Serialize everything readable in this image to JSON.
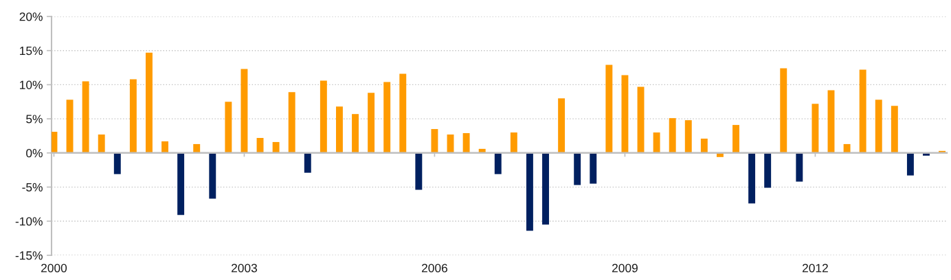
{
  "chart_data": {
    "type": "bar",
    "categories": [
      "2000",
      null,
      null,
      null,
      null,
      null,
      null,
      null,
      null,
      null,
      null,
      null,
      "2003",
      null,
      null,
      null,
      null,
      null,
      null,
      null,
      null,
      null,
      null,
      null,
      "2006",
      null,
      null,
      null,
      null,
      null,
      null,
      null,
      null,
      null,
      null,
      null,
      "2009",
      null,
      null,
      null,
      null,
      null,
      null,
      null,
      null,
      null,
      null,
      null,
      "2012",
      null,
      null,
      null,
      null,
      null,
      null,
      null,
      null
    ],
    "values": [
      3.1,
      7.8,
      10.5,
      2.7,
      -3.1,
      10.8,
      14.7,
      1.7,
      -9.1,
      1.3,
      -6.7,
      7.5,
      12.3,
      2.2,
      1.6,
      8.9,
      -2.9,
      10.6,
      6.8,
      5.7,
      8.8,
      10.4,
      11.6,
      -5.4,
      3.5,
      2.7,
      2.9,
      0.6,
      -3.1,
      3.0,
      -11.4,
      -10.5,
      8.0,
      -4.7,
      -4.5,
      12.9,
      11.4,
      9.7,
      3.0,
      5.1,
      4.8,
      2.1,
      -0.6,
      4.1,
      -7.4,
      -5.1,
      12.4,
      -4.2,
      7.2,
      9.2,
      1.3,
      12.2,
      7.8,
      6.9,
      -3.3,
      -0.4,
      0.3
    ],
    "colors": [
      "#ff9b00",
      "#ff9b00",
      "#ff9b00",
      "#ff9b00",
      "#002060",
      "#ff9b00",
      "#ff9b00",
      "#ff9b00",
      "#002060",
      "#ff9b00",
      "#002060",
      "#ff9b00",
      "#ff9b00",
      "#ff9b00",
      "#ff9b00",
      "#ff9b00",
      "#002060",
      "#ff9b00",
      "#ff9b00",
      "#ff9b00",
      "#ff9b00",
      "#ff9b00",
      "#ff9b00",
      "#002060",
      "#ff9b00",
      "#ff9b00",
      "#ff9b00",
      "#ff9b00",
      "#002060",
      "#ff9b00",
      "#002060",
      "#002060",
      "#ff9b00",
      "#002060",
      "#002060",
      "#ff9b00",
      "#ff9b00",
      "#ff9b00",
      "#ff9b00",
      "#ff9b00",
      "#ff9b00",
      "#ff9b00",
      "#ff9b00",
      "#ff9b00",
      "#002060",
      "#002060",
      "#ff9b00",
      "#002060",
      "#ff9b00",
      "#ff9b00",
      "#ff9b00",
      "#ff9b00",
      "#ff9b00",
      "#ff9b00",
      "#002060",
      "#002060",
      "#ff9b00"
    ],
    "ylim": [
      -15,
      20
    ],
    "yticks": [
      {
        "value": -15,
        "label": "-15%"
      },
      {
        "value": -10,
        "label": "-10%"
      },
      {
        "value": -5,
        "label": "-5%"
      },
      {
        "value": 0,
        "label": "0%"
      },
      {
        "value": 5,
        "label": "5%"
      },
      {
        "value": 10,
        "label": "10%"
      },
      {
        "value": 15,
        "label": "15%"
      },
      {
        "value": 20,
        "label": "20%"
      }
    ],
    "grid": "y"
  }
}
